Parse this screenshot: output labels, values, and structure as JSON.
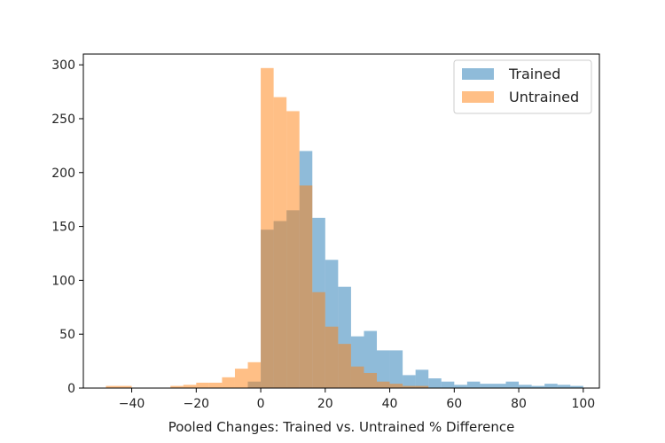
{
  "chart_data": {
    "type": "histogram",
    "title": "",
    "xlabel": "Pooled Changes: Trained vs. Untrained % Difference",
    "ylabel": "",
    "xlim": [
      -55,
      105
    ],
    "ylim": [
      0,
      310
    ],
    "xticks": [
      -40,
      -20,
      0,
      20,
      40,
      60,
      80,
      100
    ],
    "xtick_labels": [
      "−40",
      "−20",
      "0",
      "20",
      "40",
      "60",
      "80",
      "100"
    ],
    "yticks": [
      0,
      50,
      100,
      150,
      200,
      250,
      300
    ],
    "grid": false,
    "legend_position": "top-right",
    "opacity": 0.5,
    "series": [
      {
        "name": "Trained",
        "color": "#1f77b4",
        "bins": [
          [
            -4,
            0,
            6
          ],
          [
            0,
            4,
            147
          ],
          [
            4,
            8,
            155
          ],
          [
            8,
            12,
            165
          ],
          [
            12,
            16,
            220
          ],
          [
            16,
            20,
            158
          ],
          [
            20,
            24,
            119
          ],
          [
            24,
            28,
            94
          ],
          [
            28,
            32,
            48
          ],
          [
            32,
            36,
            53
          ],
          [
            36,
            40,
            35
          ],
          [
            40,
            44,
            35
          ],
          [
            44,
            48,
            12
          ],
          [
            48,
            52,
            17
          ],
          [
            52,
            56,
            9
          ],
          [
            56,
            60,
            6
          ],
          [
            60,
            64,
            3
          ],
          [
            64,
            68,
            6
          ],
          [
            68,
            72,
            4
          ],
          [
            72,
            76,
            4
          ],
          [
            76,
            80,
            6
          ],
          [
            80,
            84,
            3
          ],
          [
            84,
            88,
            2
          ],
          [
            88,
            92,
            4
          ],
          [
            92,
            96,
            3
          ],
          [
            96,
            100,
            2
          ]
        ]
      },
      {
        "name": "Untrained",
        "color": "#ff7f0e",
        "bins": [
          [
            -48,
            -44,
            2
          ],
          [
            -44,
            -40,
            2
          ],
          [
            -28,
            -24,
            2
          ],
          [
            -24,
            -20,
            3
          ],
          [
            -20,
            -16,
            5
          ],
          [
            -16,
            -12,
            5
          ],
          [
            -12,
            -8,
            10
          ],
          [
            -8,
            -4,
            18
          ],
          [
            -4,
            0,
            24
          ],
          [
            0,
            4,
            297
          ],
          [
            4,
            8,
            270
          ],
          [
            8,
            12,
            257
          ],
          [
            12,
            16,
            188
          ],
          [
            16,
            20,
            89
          ],
          [
            20,
            24,
            57
          ],
          [
            24,
            28,
            41
          ],
          [
            28,
            32,
            20
          ],
          [
            32,
            36,
            14
          ],
          [
            36,
            40,
            6
          ],
          [
            40,
            44,
            4
          ],
          [
            44,
            48,
            2
          ],
          [
            48,
            52,
            2
          ]
        ]
      }
    ]
  }
}
